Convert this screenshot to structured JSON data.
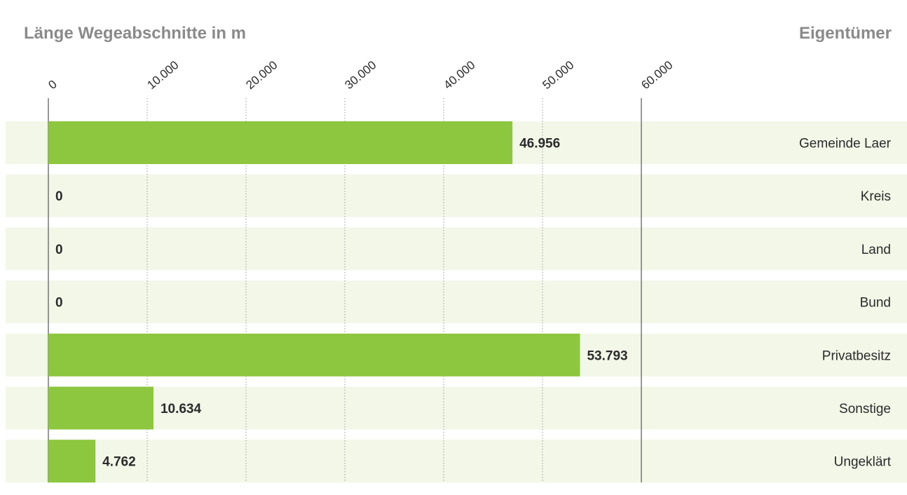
{
  "chart_data": {
    "type": "bar",
    "orientation": "horizontal",
    "xlabel": "Länge Wegeabschnitte in m",
    "ylabel": "Eigentümer",
    "categories": [
      "Gemeinde Laer",
      "Kreis",
      "Land",
      "Bund",
      "Privatbesitz",
      "Sonstige",
      "Ungeklärt"
    ],
    "values": [
      46956,
      0,
      0,
      0,
      53793,
      10634,
      4762
    ],
    "value_labels": [
      "46.956",
      "0",
      "0",
      "0",
      "53.793",
      "10.634",
      "4.762"
    ],
    "ticks": [
      0,
      10000,
      20000,
      30000,
      40000,
      50000,
      60000
    ],
    "tick_labels": [
      "0",
      "10.000",
      "20.000",
      "30.000",
      "40.000",
      "50.000",
      "60.000"
    ],
    "xlim": [
      0,
      60000
    ],
    "grid": true,
    "tick_label_position": "top",
    "colors": {
      "bar": "#8dc63f",
      "row_band": "#f2f7e8",
      "text": "#2b2b2b",
      "header_text": "#8a8a8a",
      "axis": "#555555",
      "grid": "#9a9a9a"
    }
  }
}
